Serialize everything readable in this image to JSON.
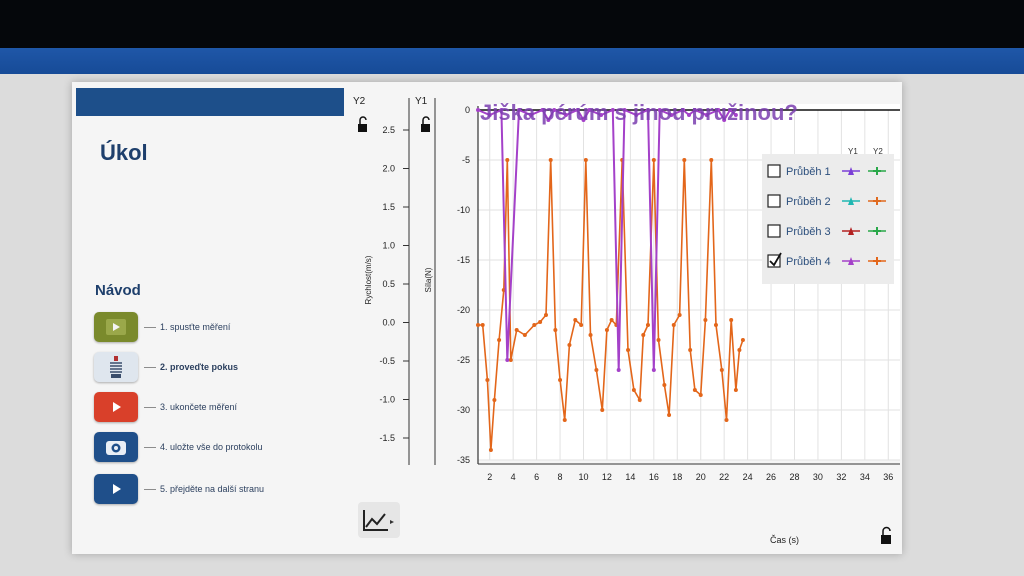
{
  "page": {
    "title": "Úkol",
    "navod_title": "Návod",
    "overlay_title": "Jiška pérúm s jinou pružinou?"
  },
  "steps": [
    {
      "label": "1. spusťte měření",
      "icon": "play-icon",
      "color": "#7a8a2c"
    },
    {
      "label": "2. proveďte pokus",
      "icon": "spring-icon",
      "color": "#dfe6ee"
    },
    {
      "label": "3. ukončete měření",
      "icon": "stop-icon",
      "color": "#d9402a"
    },
    {
      "label": "4. uložte vše do protokolu",
      "icon": "camera-icon",
      "color": "#1f4f8a"
    },
    {
      "label": "5. přejděte na další stranu",
      "icon": "next-icon",
      "color": "#1f4f8a"
    }
  ],
  "axes_panel": {
    "y2_label": "Y2",
    "y1_label": "Y1",
    "y2_title": "Rychlost(m/s)",
    "y1_title": "Síla(N)",
    "y2_ticks": [
      "2.5",
      "2.0",
      "1.5",
      "1.0",
      "0.5",
      "0.0",
      "-0.5",
      "-1.0",
      "-1.5"
    ],
    "xlabel": "Čas (s)"
  },
  "legend": {
    "col_y1": "Y1",
    "col_y2": "Y2",
    "items": [
      {
        "label": "Průběh 1",
        "checked": false,
        "c1": "#7b3fd6",
        "c2": "#2aa84a"
      },
      {
        "label": "Průběh 2",
        "checked": false,
        "c1": "#1fb7b2",
        "c2": "#e06a1f"
      },
      {
        "label": "Průběh 3",
        "checked": false,
        "c1": "#b32121",
        "c2": "#2aa84a"
      },
      {
        "label": "Průběh 4",
        "checked": true,
        "c1": "#a441c9",
        "c2": "#e3661a"
      }
    ]
  },
  "chart_data": {
    "type": "line",
    "xlabel": "Čas (s)",
    "ylabel": "Síla(N)",
    "xlim": [
      1,
      37
    ],
    "ylim": [
      -35,
      0
    ],
    "x_ticks": [
      2,
      4,
      6,
      8,
      10,
      12,
      14,
      16,
      18,
      20,
      22,
      24,
      26,
      28,
      30,
      32,
      34,
      36
    ],
    "y_ticks": [
      0,
      -5,
      -10,
      -15,
      -20,
      -25,
      -30,
      -35
    ],
    "series": [
      {
        "name": "Průběh 4",
        "color": "#e3661a",
        "x": [
          1.0,
          1.4,
          1.8,
          2.1,
          2.4,
          2.8,
          3.2,
          3.5,
          3.8,
          4.3,
          5.0,
          5.8,
          6.3,
          6.8,
          7.2,
          7.6,
          8.0,
          8.4,
          8.8,
          9.3,
          9.8,
          10.2,
          10.6,
          11.1,
          11.6,
          12.0,
          12.4,
          12.8,
          13.3,
          13.8,
          14.3,
          14.8,
          15.1,
          15.5,
          16.0,
          16.4,
          16.9,
          17.3,
          17.7,
          18.2,
          18.6,
          19.1,
          19.5,
          20.0,
          20.4,
          20.9,
          21.3,
          21.8,
          22.2,
          22.6,
          23.0,
          23.3,
          23.6
        ],
        "y": [
          -21.5,
          -21.5,
          -27,
          -34,
          -29,
          -23,
          -18,
          -5,
          -25,
          -22,
          -22.5,
          -21.5,
          -21.2,
          -20.5,
          -5,
          -22,
          -27,
          -31,
          -23.5,
          -21,
          -21.5,
          -5,
          -22.5,
          -26,
          -30,
          -22,
          -21,
          -21.5,
          -5,
          -24,
          -28,
          -29,
          -22.5,
          -21.5,
          -5,
          -23,
          -27.5,
          -30.5,
          -21.5,
          -20.5,
          -5,
          -24,
          -28,
          -28.5,
          -21,
          -5,
          -21.5,
          -26,
          -31,
          -21,
          -28,
          -24,
          -23
        ]
      },
      {
        "name": "Průběh 4",
        "color": "#a441c9",
        "x": [
          1.0,
          2.0,
          3.0,
          3.5,
          4.5,
          5.5,
          6.5,
          7.0,
          7.5,
          8.5,
          9.5,
          10.0,
          10.5,
          11.5,
          12.5,
          13.0,
          13.5,
          14.5,
          15.5,
          16.0,
          16.5,
          17.5,
          18.5,
          19.0,
          19.5,
          20.5,
          21.5,
          22.0,
          22.5,
          23.0
        ],
        "y": [
          0,
          -0.5,
          0,
          -25,
          0,
          -0.5,
          0,
          -1,
          0,
          -0.5,
          0,
          -1,
          0,
          -0.5,
          0,
          -26,
          0,
          -0.5,
          0,
          -26,
          0,
          -0.5,
          0,
          -0.5,
          0,
          -0.5,
          0,
          -1,
          0,
          -0.5
        ]
      }
    ]
  }
}
